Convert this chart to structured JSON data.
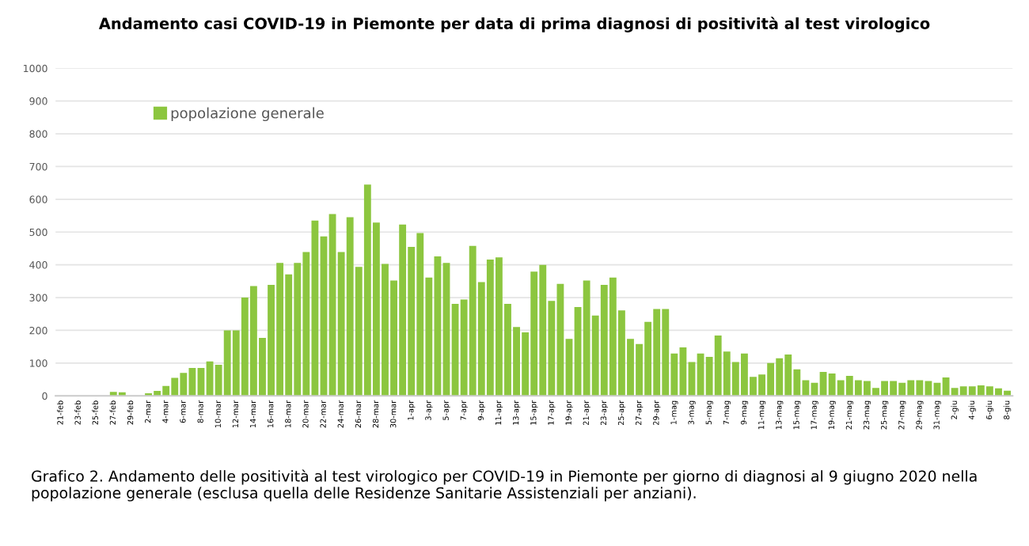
{
  "chart_data": {
    "type": "bar",
    "title": "Andamento casi COVID-19 in Piemonte per data di prima diagnosi di positività al test virologico",
    "categories": [
      "21-feb",
      null,
      "23-feb",
      null,
      "25-feb",
      null,
      "27-feb",
      null,
      "29-feb",
      null,
      "2-mar",
      null,
      "4-mar",
      null,
      "6-mar",
      null,
      "8-mar",
      null,
      "10-mar",
      null,
      "12-mar",
      null,
      "14-mar",
      null,
      "16-mar",
      null,
      "18-mar",
      null,
      "20-mar",
      null,
      "22-mar",
      null,
      "24-mar",
      null,
      "26-mar",
      null,
      "28-mar",
      null,
      "30-mar",
      null,
      "1-apr",
      null,
      "3-apr",
      null,
      "5-apr",
      null,
      "7-apr",
      null,
      "9-apr",
      null,
      "11-apr",
      null,
      "13-apr",
      null,
      "15-apr",
      null,
      "17-apr",
      null,
      "19-apr",
      null,
      "21-apr",
      null,
      "23-apr",
      null,
      "25-apr",
      null,
      "27-apr",
      null,
      "29-apr",
      null,
      "1-mag",
      null,
      "3-mag",
      null,
      "5-mag",
      null,
      "7-mag",
      null,
      "9-mag",
      null,
      "11-mag",
      null,
      "13-mag",
      null,
      "15-mag",
      null,
      "17-mag",
      null,
      "19-mag",
      null,
      "21-mag",
      null,
      "23-mag",
      null,
      "25-mag",
      null,
      "27-mag",
      null,
      "29-mag",
      null,
      "31-mag",
      null,
      "2-giu",
      null,
      "4-giu",
      null,
      "6-giu",
      null,
      "8-giu"
    ],
    "series": [
      {
        "name": "popolazione generale",
        "color": "#8cc63f",
        "values": [
          0,
          null,
          0,
          null,
          0,
          0,
          12,
          11,
          null,
          null,
          8,
          15,
          30,
          55,
          70,
          85,
          85,
          105,
          95,
          200,
          200,
          300,
          335,
          177,
          339,
          406,
          371,
          406,
          439,
          535,
          487,
          555,
          439,
          545,
          394,
          645,
          529,
          403,
          352,
          523,
          455,
          497,
          361,
          426,
          406,
          281,
          294,
          458,
          347,
          416,
          423,
          281,
          210,
          194,
          379,
          400,
          290,
          342,
          174,
          271,
          352,
          245,
          339,
          361,
          261,
          174,
          158,
          226,
          265,
          265,
          129,
          148,
          103,
          129,
          119,
          184,
          135,
          103,
          129,
          58,
          65,
          100,
          115,
          126,
          81,
          48,
          40,
          73,
          68,
          48,
          61,
          48,
          45,
          24,
          45,
          45,
          40,
          48,
          48,
          45,
          40,
          56,
          24,
          29,
          29,
          32,
          29,
          23,
          16
        ]
      }
    ],
    "ylim": [
      0,
      1000
    ],
    "yticks": [
      0,
      100,
      200,
      300,
      400,
      500,
      600,
      700,
      800,
      900,
      1000
    ],
    "grid": "y",
    "legend": "top left",
    "annotations": [
      "Grafico 2. Andamento delle positività al test virologico per COVID-19 in Piemonte per giorno di diagnosi al 9 giugno 2020 nella popolazione generale (esclusa quella delle Residenze Sanitarie Assistenziali per anziani)."
    ]
  }
}
